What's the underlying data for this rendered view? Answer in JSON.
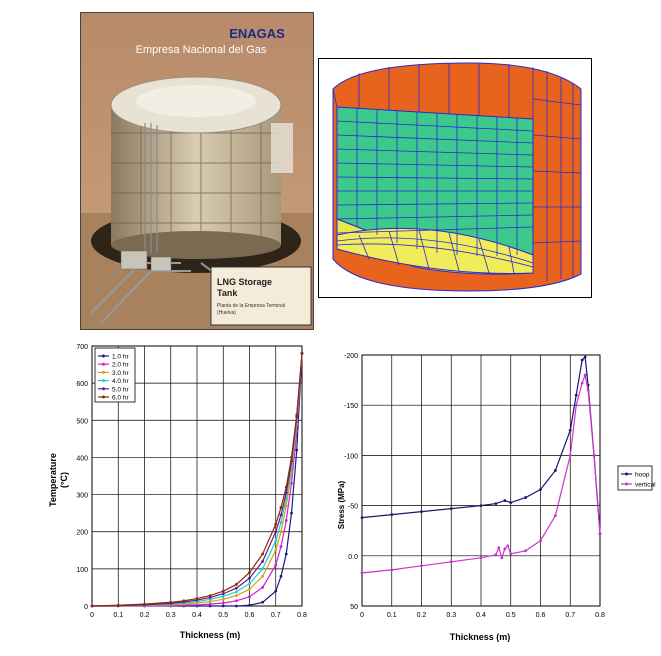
{
  "photo": {
    "brand": "ENAGAS",
    "brand_sub": "Empresa Nacional del Gas",
    "caption_title_1": "LNG Storage",
    "caption_title_2": "Tank",
    "caption_sub_1": "Planta de la Empresa Terminal",
    "caption_sub_2": "(Huelva)"
  },
  "chart_data": [
    {
      "type": "line",
      "xlabel": "Thickness (m)",
      "ylabel_1": "Temperature",
      "ylabel_2": "(°C)",
      "xlim": [
        0,
        0.8
      ],
      "ylim": [
        0,
        700
      ],
      "x_ticks": [
        "0",
        "0.1",
        "0.2",
        "0.3",
        "0.4",
        "0.5",
        "0.6",
        "0.7",
        "0.8"
      ],
      "y_ticks": [
        "0",
        "100",
        "200",
        "300",
        "400",
        "500",
        "600",
        "700"
      ],
      "legend": "top-left",
      "grid": true,
      "x": [
        0,
        0.1,
        0.2,
        0.3,
        0.35,
        0.4,
        0.45,
        0.5,
        0.55,
        0.6,
        0.65,
        0.7,
        0.72,
        0.74,
        0.76,
        0.78,
        0.8
      ],
      "series": [
        {
          "name": "1.0 hr",
          "color": "#1a1a8c",
          "values": [
            0,
            0,
            0,
            0,
            0,
            0,
            0,
            0,
            0,
            2,
            10,
            40,
            80,
            140,
            250,
            420,
            680
          ]
        },
        {
          "name": "2.0 hr",
          "color": "#cc22cc",
          "values": [
            0,
            0,
            0,
            1,
            2,
            3,
            5,
            8,
            14,
            25,
            50,
            110,
            160,
            230,
            330,
            470,
            680
          ]
        },
        {
          "name": "3.0 hr",
          "color": "#d4a017",
          "values": [
            0,
            0,
            1,
            3,
            5,
            8,
            12,
            18,
            28,
            45,
            80,
            150,
            200,
            270,
            360,
            490,
            680
          ]
        },
        {
          "name": "4.0 hr",
          "color": "#22cccc",
          "values": [
            0,
            1,
            2,
            5,
            8,
            12,
            18,
            26,
            38,
            60,
            100,
            175,
            225,
            290,
            375,
            500,
            680
          ]
        },
        {
          "name": "5.0 hr",
          "color": "#6a1a8c",
          "values": [
            0,
            1,
            3,
            7,
            11,
            16,
            23,
            33,
            48,
            75,
            120,
            200,
            245,
            305,
            390,
            510,
            680
          ]
        },
        {
          "name": "6.0 hr",
          "color": "#8b2b0a",
          "values": [
            0,
            2,
            5,
            10,
            14,
            20,
            28,
            40,
            58,
            90,
            140,
            220,
            265,
            320,
            400,
            515,
            680
          ]
        }
      ]
    },
    {
      "type": "line",
      "xlabel": "Thickness (m)",
      "ylabel": "Stress (MPa)",
      "xlim": [
        0,
        0.8
      ],
      "ylim": [
        50,
        -200
      ],
      "x_ticks": [
        "0",
        "0.1",
        "0.2",
        "0.3",
        "0.4",
        "0.5",
        "0.6",
        "0.7",
        "0.8"
      ],
      "y_ticks": [
        "-200",
        "-150",
        "-100",
        "-50",
        "0.0",
        "50"
      ],
      "legend": "right",
      "grid": true,
      "series": [
        {
          "name": "hoop",
          "color": "#1a1a6e",
          "x": [
            0,
            0.1,
            0.2,
            0.3,
            0.4,
            0.45,
            0.48,
            0.5,
            0.55,
            0.6,
            0.65,
            0.7,
            0.72,
            0.74,
            0.75,
            0.76,
            0.78,
            0.8
          ],
          "values": [
            -38,
            -41,
            -44,
            -47,
            -50,
            -52,
            -55,
            -53,
            -58,
            -66,
            -85,
            -125,
            -160,
            -195,
            -198,
            -170,
            -100,
            -22
          ]
        },
        {
          "name": "vertical",
          "color": "#cc33cc",
          "x": [
            0,
            0.1,
            0.2,
            0.3,
            0.4,
            0.45,
            0.46,
            0.47,
            0.48,
            0.49,
            0.5,
            0.55,
            0.6,
            0.65,
            0.7,
            0.72,
            0.74,
            0.75,
            0.76,
            0.78,
            0.8
          ],
          "values": [
            17,
            14,
            10,
            6,
            2,
            -1,
            -8,
            2,
            -7,
            -10,
            -2,
            -5,
            -15,
            -40,
            -100,
            -150,
            -172,
            -180,
            -165,
            -100,
            -22
          ]
        }
      ]
    }
  ]
}
